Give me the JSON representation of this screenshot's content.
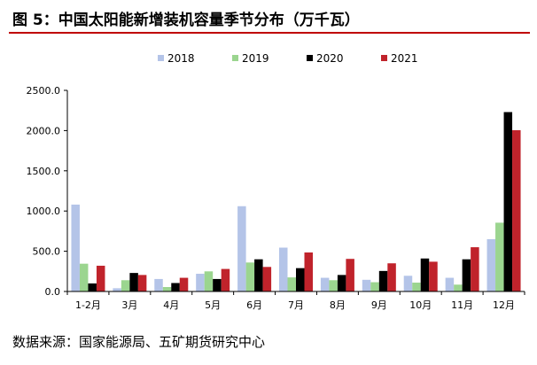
{
  "title": "图 5：中国太阳能新增装机容量季节分布（万千瓦）",
  "footer": "数据来源：国家能源局、五矿期货研究中心",
  "chart_data": {
    "type": "bar",
    "categories": [
      "1-2月",
      "3月",
      "4月",
      "5月",
      "6月",
      "7月",
      "8月",
      "9月",
      "10月",
      "11月",
      "12月"
    ],
    "series": [
      {
        "name": "2018",
        "color": "#b4c4e8",
        "values": [
          1080,
          40,
          155,
          220,
          1060,
          545,
          170,
          145,
          195,
          170,
          650
        ]
      },
      {
        "name": "2019",
        "color": "#9bd58f",
        "values": [
          345,
          140,
          55,
          250,
          360,
          175,
          140,
          115,
          110,
          85,
          855
        ]
      },
      {
        "name": "2020",
        "color": "#000000",
        "values": [
          100,
          230,
          105,
          155,
          400,
          290,
          205,
          255,
          410,
          400,
          2230
        ]
      },
      {
        "name": "2021",
        "color": "#c0232b",
        "values": [
          320,
          205,
          170,
          280,
          305,
          485,
          405,
          350,
          370,
          550,
          2005
        ]
      }
    ],
    "ylim": [
      0,
      2500
    ],
    "yticks": [
      "0.0",
      "500.0",
      "1000.0",
      "1500.0",
      "2000.0",
      "2500.0"
    ],
    "legend": "top",
    "grid": false
  }
}
